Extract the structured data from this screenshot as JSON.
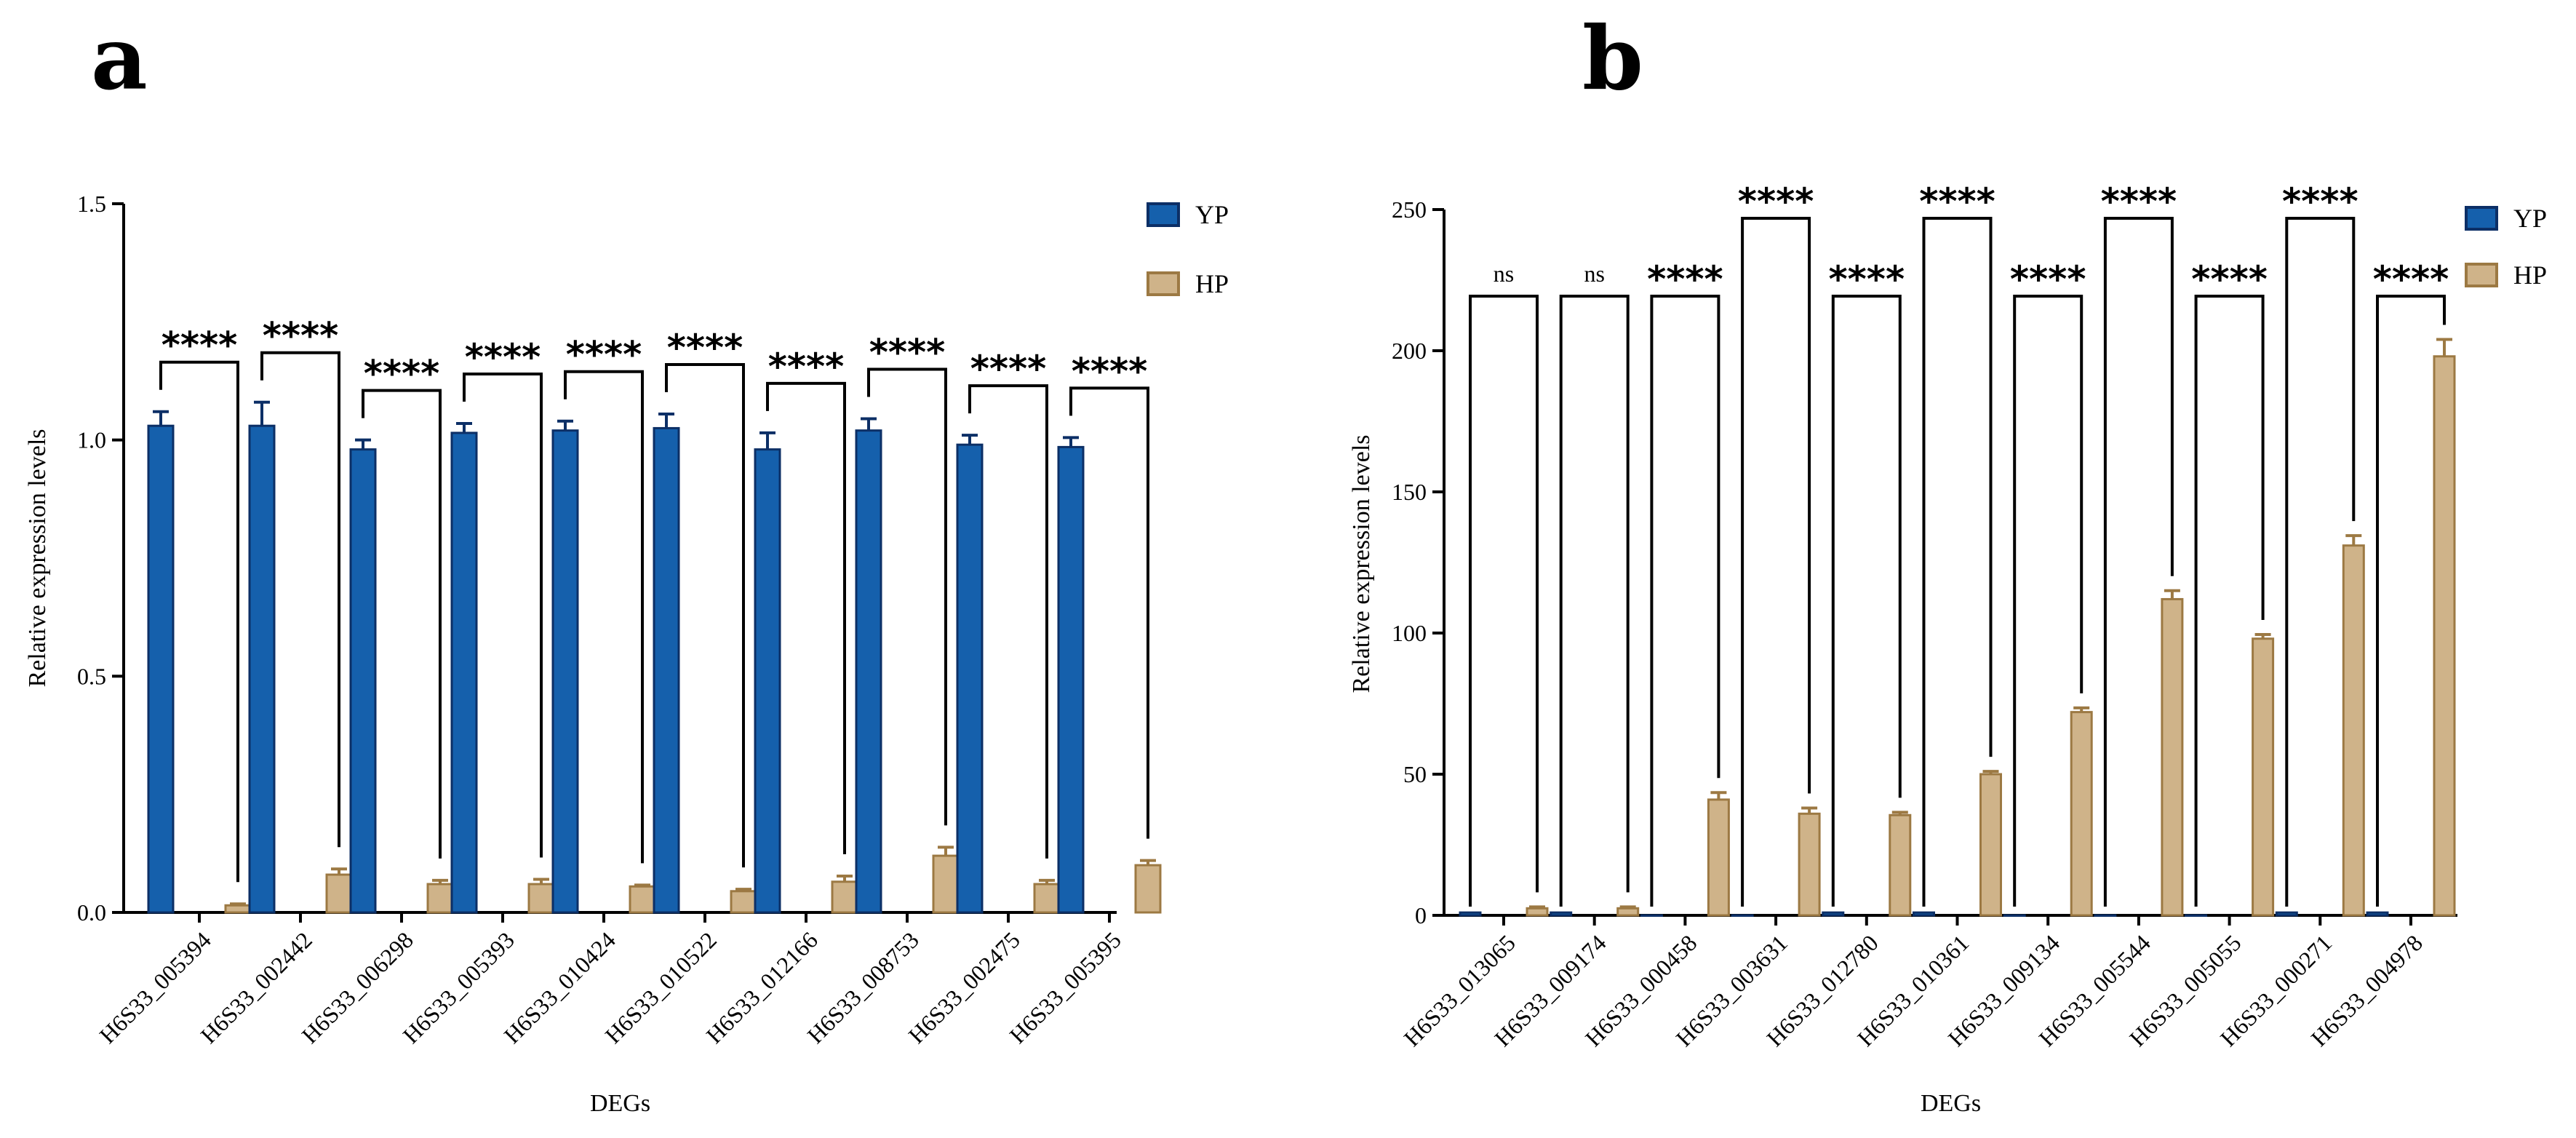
{
  "panels": {
    "a": "a",
    "b": "b"
  },
  "colors": {
    "yp_fill": "#1560AC",
    "yp_stroke": "#0C2F66",
    "hp_fill": "#CFB389",
    "hp_stroke": "#9C7943",
    "axis": "#000000"
  },
  "chart_data": [
    {
      "type": "bar",
      "panel": "a",
      "xlabel": "DEGs",
      "ylabel": "Relative expression levels",
      "ylim": [
        0,
        1.5
      ],
      "yticks": [
        0.0,
        0.5,
        1.0,
        1.5
      ],
      "ytick_labels": [
        "0.0",
        "0.5",
        "1.0",
        "1.5"
      ],
      "legend": [
        "YP",
        "HP"
      ],
      "legend_position": "top-right",
      "categories": [
        "H6S33_005394",
        "H6S33_002442",
        "H6S33_006298",
        "H6S33_005393",
        "H6S33_010424",
        "H6S33_010522",
        "H6S33_012166",
        "H6S33_008753",
        "H6S33_002475",
        "H6S33_005395"
      ],
      "series": [
        {
          "name": "YP",
          "values": [
            1.03,
            1.03,
            0.98,
            1.015,
            1.02,
            1.025,
            0.98,
            1.02,
            0.99,
            0.985
          ],
          "errors": [
            0.03,
            0.05,
            0.02,
            0.02,
            0.02,
            0.03,
            0.035,
            0.025,
            0.02,
            0.02
          ]
        },
        {
          "name": "HP",
          "values": [
            0.015,
            0.08,
            0.06,
            0.06,
            0.055,
            0.045,
            0.065,
            0.12,
            0.06,
            0.1
          ],
          "errors": [
            0.003,
            0.012,
            0.008,
            0.01,
            0.003,
            0.004,
            0.012,
            0.018,
            0.008,
            0.01
          ]
        }
      ],
      "significance": [
        "****",
        "****",
        "****",
        "****",
        "****",
        "****",
        "****",
        "****",
        "****",
        "****"
      ]
    },
    {
      "type": "bar",
      "panel": "b",
      "xlabel": "DEGs",
      "ylabel": "Relative expression levels",
      "ylim": [
        0,
        250
      ],
      "yticks": [
        0,
        50,
        100,
        150,
        200,
        250
      ],
      "ytick_labels": [
        "0",
        "50",
        "100",
        "150",
        "200",
        "250"
      ],
      "legend": [
        "YP",
        "HP"
      ],
      "legend_position": "top-right",
      "categories": [
        "H6S33_013065",
        "H6S33_009174",
        "H6S33_000458",
        "H6S33_003631",
        "H6S33_012780",
        "H6S33_010361",
        "H6S33_009134",
        "H6S33_005544",
        "H6S33_005055",
        "H6S33_000271",
        "H6S33_004978"
      ],
      "series": [
        {
          "name": "YP",
          "values": [
            1,
            1,
            0,
            0,
            1,
            1,
            0,
            0,
            0,
            1,
            1
          ],
          "errors": [
            0,
            0,
            0,
            0,
            0,
            0,
            0,
            0,
            0,
            0,
            0
          ]
        },
        {
          "name": "HP",
          "values": [
            2.5,
            2.5,
            41,
            36,
            35.5,
            50,
            72,
            112,
            98,
            131,
            198
          ],
          "errors": [
            0.5,
            0.5,
            2.5,
            2,
            1,
            1,
            1.5,
            3,
            1.5,
            3.5,
            6
          ]
        }
      ],
      "significance": [
        "ns",
        "ns",
        "****",
        "****",
        "****",
        "****",
        "****",
        "****",
        "****",
        "****",
        "****"
      ]
    }
  ]
}
